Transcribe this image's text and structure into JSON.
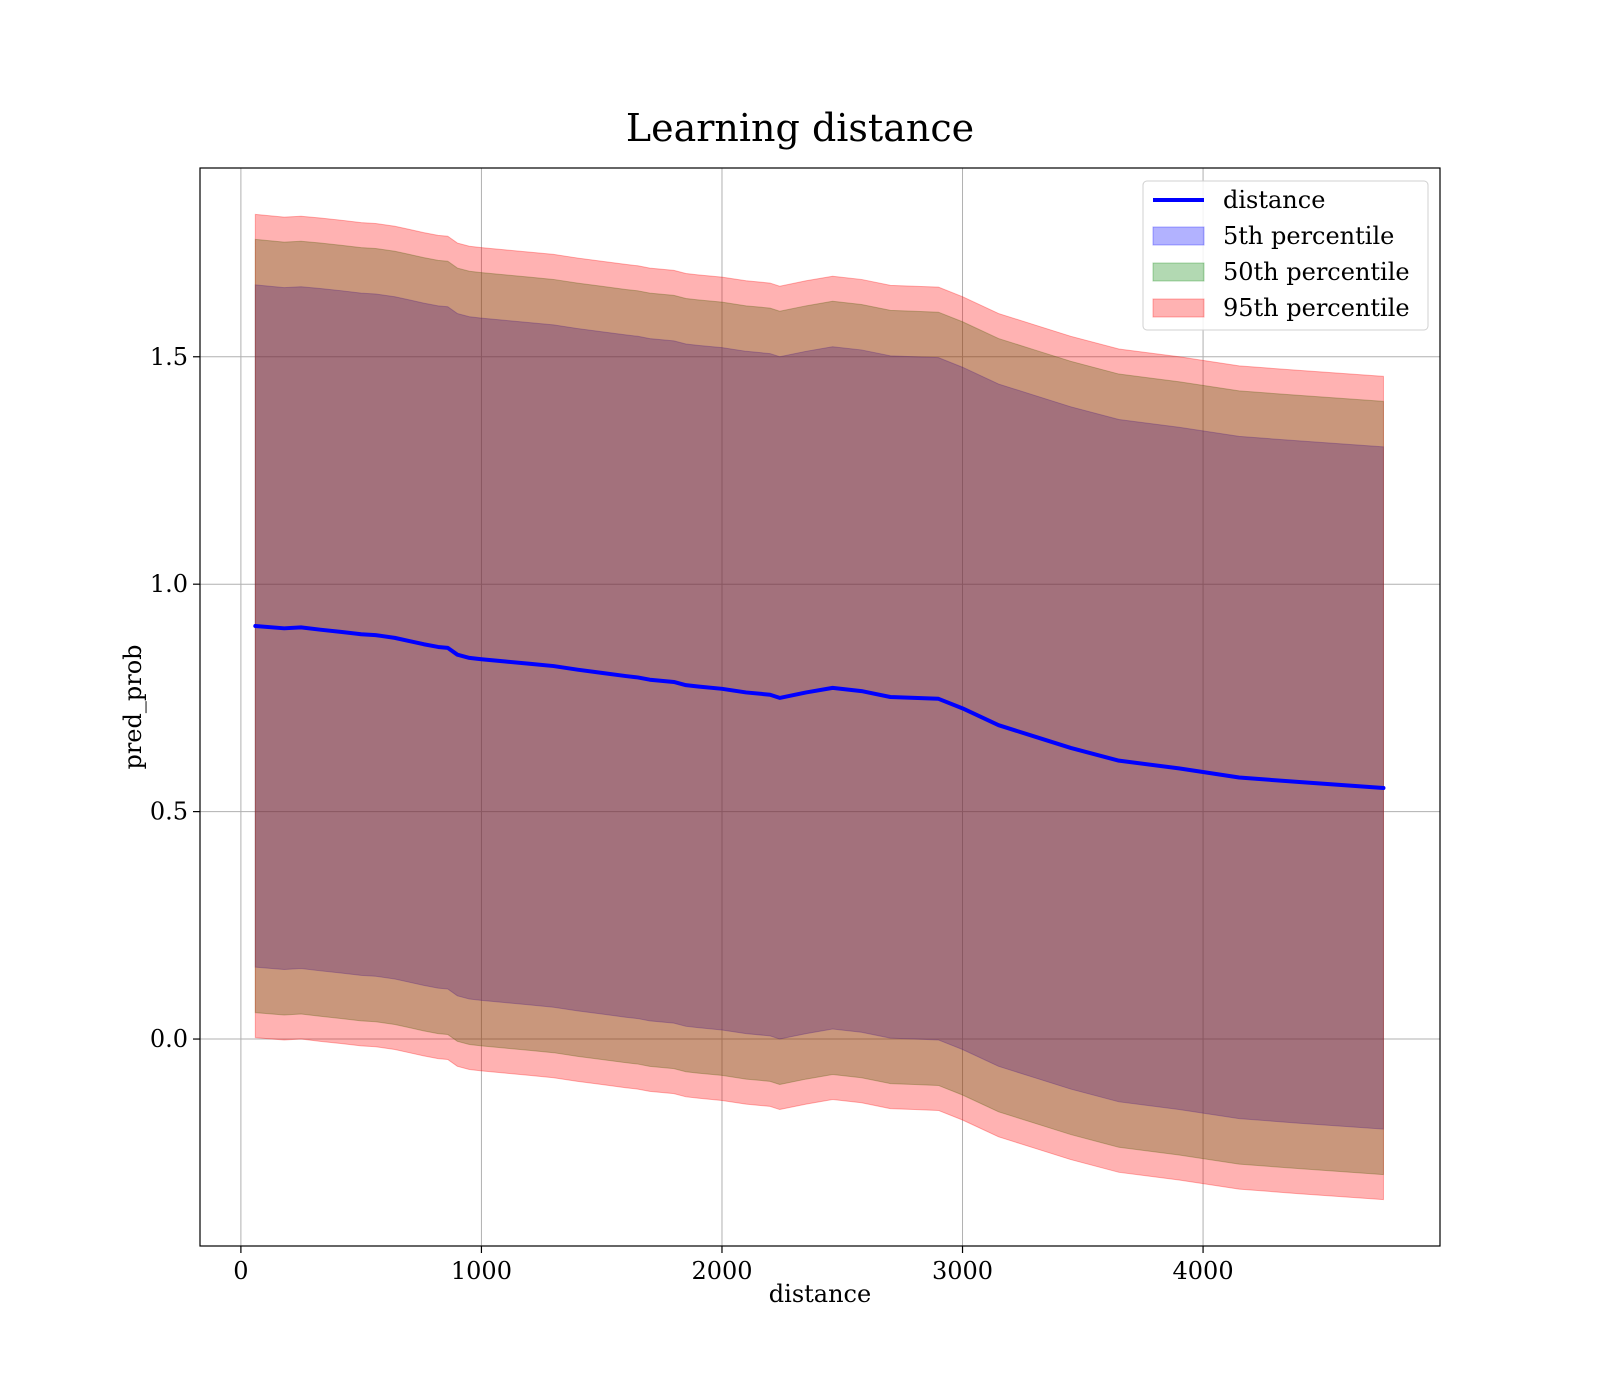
{
  "chart_data": {
    "type": "area",
    "title": "Learning distance",
    "xlabel": "distance",
    "ylabel": "pred_prob",
    "xlim": [
      -170,
      4985
    ],
    "ylim": [
      -0.455,
      1.915
    ],
    "xticks": [
      0,
      1000,
      2000,
      3000,
      4000
    ],
    "xtick_labels": [
      "0",
      "1000",
      "2000",
      "3000",
      "4000"
    ],
    "yticks": [
      0.0,
      0.5,
      1.0,
      1.5
    ],
    "ytick_labels": [
      "0.0",
      "0.5",
      "1.0",
      "1.5"
    ],
    "grid": true,
    "legend_position": "top-right",
    "x": [
      60,
      180,
      250,
      330,
      420,
      500,
      560,
      640,
      700,
      760,
      820,
      860,
      900,
      950,
      1000,
      1100,
      1200,
      1300,
      1400,
      1500,
      1600,
      1650,
      1700,
      1800,
      1850,
      1900,
      2000,
      2100,
      2200,
      2240,
      2350,
      2460,
      2580,
      2700,
      2800,
      2900,
      3000,
      3150,
      3300,
      3450,
      3650,
      3900,
      4150,
      4400,
      4750
    ],
    "series": [
      {
        "name": "distance",
        "kind": "line",
        "color": "#0000ff",
        "values": [
          0.908,
          0.903,
          0.905,
          0.9,
          0.895,
          0.89,
          0.888,
          0.882,
          0.875,
          0.868,
          0.862,
          0.86,
          0.845,
          0.838,
          0.835,
          0.83,
          0.825,
          0.82,
          0.812,
          0.805,
          0.798,
          0.795,
          0.79,
          0.785,
          0.778,
          0.775,
          0.77,
          0.762,
          0.757,
          0.75,
          0.762,
          0.772,
          0.765,
          0.752,
          0.75,
          0.748,
          0.727,
          0.69,
          0.665,
          0.64,
          0.612,
          0.595,
          0.575,
          0.565,
          0.552
        ]
      },
      {
        "name": "5th percentile",
        "kind": "band",
        "color": "#0000ff",
        "upper": [
          1.658,
          1.652,
          1.654,
          1.65,
          1.645,
          1.64,
          1.638,
          1.632,
          1.625,
          1.618,
          1.612,
          1.61,
          1.595,
          1.588,
          1.585,
          1.58,
          1.575,
          1.57,
          1.562,
          1.555,
          1.548,
          1.545,
          1.54,
          1.535,
          1.528,
          1.525,
          1.52,
          1.512,
          1.507,
          1.5,
          1.512,
          1.522,
          1.515,
          1.502,
          1.5,
          1.498,
          1.477,
          1.44,
          1.415,
          1.39,
          1.362,
          1.345,
          1.325,
          1.315,
          1.302
        ],
        "lower": [
          0.158,
          0.153,
          0.155,
          0.15,
          0.145,
          0.14,
          0.138,
          0.132,
          0.125,
          0.118,
          0.112,
          0.11,
          0.095,
          0.088,
          0.085,
          0.08,
          0.075,
          0.07,
          0.062,
          0.055,
          0.048,
          0.045,
          0.04,
          0.035,
          0.028,
          0.025,
          0.02,
          0.012,
          0.007,
          0.0,
          0.012,
          0.022,
          0.015,
          0.002,
          0.0,
          -0.002,
          -0.023,
          -0.06,
          -0.085,
          -0.11,
          -0.138,
          -0.155,
          -0.175,
          -0.185,
          -0.198
        ]
      },
      {
        "name": "50th percentile",
        "kind": "band",
        "color": "#008000",
        "upper": [
          1.758,
          1.752,
          1.754,
          1.75,
          1.745,
          1.74,
          1.738,
          1.732,
          1.725,
          1.718,
          1.712,
          1.71,
          1.695,
          1.688,
          1.685,
          1.68,
          1.675,
          1.67,
          1.662,
          1.655,
          1.648,
          1.645,
          1.64,
          1.635,
          1.628,
          1.625,
          1.62,
          1.612,
          1.607,
          1.6,
          1.612,
          1.622,
          1.615,
          1.602,
          1.6,
          1.598,
          1.577,
          1.54,
          1.515,
          1.49,
          1.462,
          1.445,
          1.425,
          1.415,
          1.402
        ],
        "lower": [
          0.058,
          0.053,
          0.055,
          0.05,
          0.045,
          0.04,
          0.038,
          0.032,
          0.025,
          0.018,
          0.012,
          0.01,
          -0.005,
          -0.012,
          -0.015,
          -0.02,
          -0.025,
          -0.03,
          -0.038,
          -0.045,
          -0.052,
          -0.055,
          -0.06,
          -0.065,
          -0.072,
          -0.075,
          -0.08,
          -0.088,
          -0.093,
          -0.1,
          -0.088,
          -0.078,
          -0.085,
          -0.098,
          -0.1,
          -0.102,
          -0.123,
          -0.16,
          -0.185,
          -0.21,
          -0.238,
          -0.255,
          -0.275,
          -0.285,
          -0.298
        ]
      },
      {
        "name": "95th percentile",
        "kind": "band",
        "color": "#ff0000",
        "upper": [
          1.813,
          1.807,
          1.809,
          1.805,
          1.8,
          1.795,
          1.793,
          1.787,
          1.78,
          1.773,
          1.767,
          1.765,
          1.75,
          1.743,
          1.74,
          1.735,
          1.73,
          1.725,
          1.717,
          1.71,
          1.703,
          1.7,
          1.695,
          1.69,
          1.683,
          1.68,
          1.675,
          1.667,
          1.662,
          1.655,
          1.667,
          1.677,
          1.67,
          1.657,
          1.655,
          1.653,
          1.632,
          1.595,
          1.57,
          1.545,
          1.517,
          1.5,
          1.48,
          1.47,
          1.457
        ],
        "lower": [
          0.003,
          -0.002,
          0.0,
          -0.005,
          -0.01,
          -0.015,
          -0.017,
          -0.023,
          -0.03,
          -0.037,
          -0.043,
          -0.045,
          -0.06,
          -0.067,
          -0.07,
          -0.075,
          -0.08,
          -0.085,
          -0.093,
          -0.1,
          -0.107,
          -0.11,
          -0.115,
          -0.12,
          -0.127,
          -0.13,
          -0.135,
          -0.143,
          -0.148,
          -0.155,
          -0.143,
          -0.133,
          -0.14,
          -0.153,
          -0.155,
          -0.157,
          -0.178,
          -0.215,
          -0.24,
          -0.265,
          -0.293,
          -0.31,
          -0.33,
          -0.34,
          -0.353
        ]
      }
    ]
  }
}
